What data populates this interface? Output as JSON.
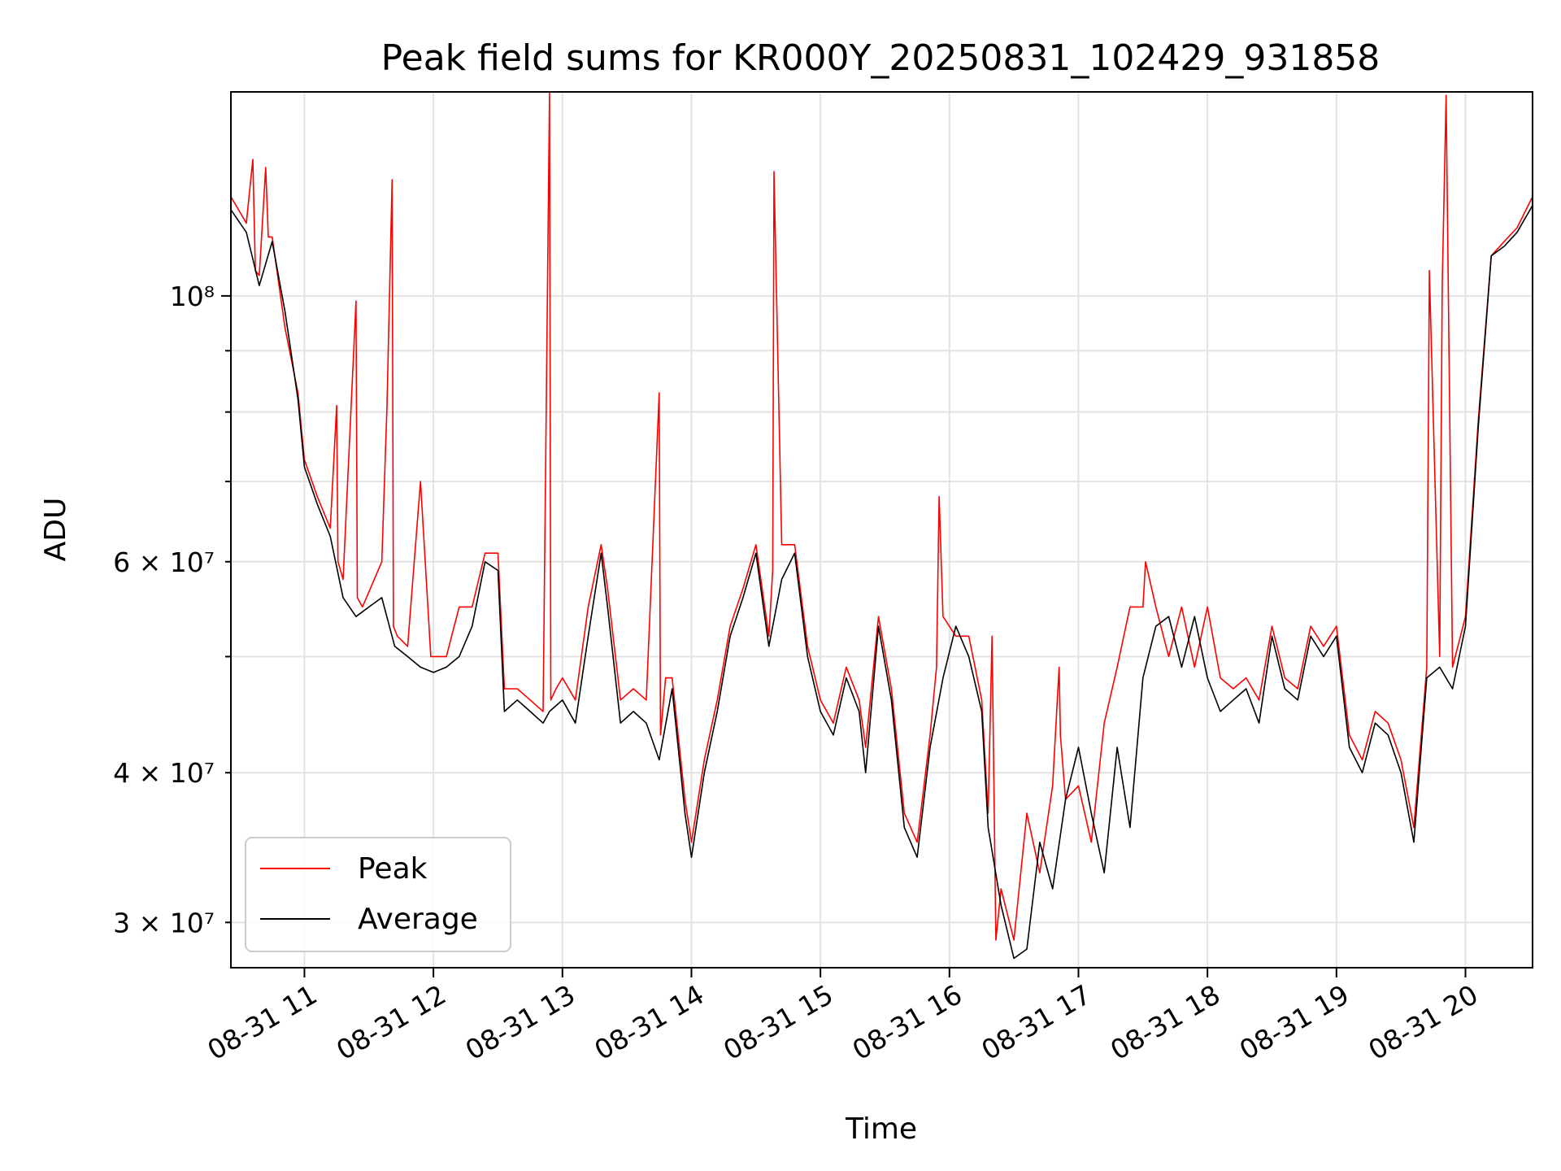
{
  "chart_data": {
    "type": "line",
    "title": "Peak field sums for KR000Y_20250831_102429_931858",
    "xlabel": "Time",
    "ylabel": "ADU",
    "x_tick_labels": [
      "08-31 11",
      "08-31 12",
      "08-31 13",
      "08-31 14",
      "08-31 15",
      "08-31 16",
      "08-31 17",
      "08-31 18",
      "08-31 19",
      "08-31 20"
    ],
    "x_ticks_hours": [
      11,
      12,
      13,
      14,
      15,
      16,
      17,
      18,
      19,
      20
    ],
    "xlim_hours": [
      10.43,
      20.52
    ],
    "y_scale": "log",
    "ylim": [
      27500000,
      148000000
    ],
    "y_major_ticks": [
      100000000
    ],
    "y_major_labels": [
      "10⁸"
    ],
    "y_minor_ticks": [
      30000000,
      40000000,
      50000000,
      60000000,
      70000000,
      80000000,
      90000000
    ],
    "y_minor_labels": [
      "3 × 10⁷",
      "4 × 10⁷",
      "",
      "6 × 10⁷",
      "",
      "",
      ""
    ],
    "grid": true,
    "legend_location": "lower-left",
    "series": [
      {
        "name": "Average",
        "color": "#000000",
        "x_hours": [
          10.43,
          10.55,
          10.65,
          10.75,
          10.85,
          10.95,
          11.0,
          11.1,
          11.2,
          11.3,
          11.4,
          11.5,
          11.6,
          11.7,
          11.8,
          11.9,
          12.0,
          12.1,
          12.2,
          12.3,
          12.4,
          12.5,
          12.55,
          12.65,
          12.75,
          12.85,
          12.9,
          13.0,
          13.1,
          13.2,
          13.3,
          13.35,
          13.45,
          13.55,
          13.65,
          13.75,
          13.85,
          13.95,
          14.0,
          14.1,
          14.2,
          14.3,
          14.4,
          14.5,
          14.6,
          14.7,
          14.8,
          14.9,
          15.0,
          15.1,
          15.2,
          15.3,
          15.35,
          15.45,
          15.55,
          15.65,
          15.75,
          15.85,
          15.95,
          16.05,
          16.15,
          16.25,
          16.3,
          16.4,
          16.5,
          16.6,
          16.7,
          16.8,
          16.9,
          17.0,
          17.1,
          17.2,
          17.3,
          17.4,
          17.5,
          17.6,
          17.7,
          17.8,
          17.9,
          18.0,
          18.1,
          18.2,
          18.3,
          18.4,
          18.5,
          18.6,
          18.7,
          18.8,
          18.9,
          19.0,
          19.1,
          19.2,
          19.3,
          19.4,
          19.5,
          19.6,
          19.7,
          19.8,
          19.9,
          20.0,
          20.1,
          20.2,
          20.3,
          20.4,
          20.52
        ],
        "values": [
          118000000,
          113000000,
          102000000,
          111000000,
          97000000,
          82000000,
          72000000,
          67000000,
          63000000,
          56000000,
          54000000,
          55000000,
          56000000,
          51000000,
          50000000,
          49000000,
          48500000,
          49000000,
          50000000,
          53000000,
          60000000,
          59000000,
          45000000,
          46000000,
          45000000,
          44000000,
          45000000,
          46000000,
          44000000,
          52000000,
          61000000,
          55000000,
          44000000,
          45000000,
          44000000,
          41000000,
          47000000,
          37000000,
          34000000,
          40000000,
          45000000,
          52000000,
          56000000,
          61000000,
          51000000,
          58000000,
          61000000,
          50000000,
          45000000,
          43000000,
          48000000,
          45000000,
          40000000,
          53000000,
          46000000,
          36000000,
          34000000,
          42000000,
          48000000,
          53000000,
          50000000,
          45000000,
          36000000,
          31000000,
          28000000,
          28500000,
          35000000,
          32000000,
          38000000,
          42000000,
          37000000,
          33000000,
          42000000,
          36000000,
          48000000,
          53000000,
          54000000,
          49000000,
          54000000,
          48000000,
          45000000,
          46000000,
          47000000,
          44000000,
          52000000,
          47000000,
          46000000,
          52000000,
          50000000,
          52000000,
          42000000,
          40000000,
          44000000,
          43000000,
          40000000,
          35000000,
          48000000,
          49000000,
          47000000,
          53000000,
          78000000,
          108000000,
          110000000,
          113000000,
          119000000
        ]
      },
      {
        "name": "Peak",
        "color": "#ff0000",
        "x_hours": [
          10.43,
          10.55,
          10.6,
          10.62,
          10.65,
          10.7,
          10.72,
          10.75,
          10.85,
          10.95,
          11.0,
          11.1,
          11.2,
          11.25,
          11.26,
          11.3,
          11.4,
          11.41,
          11.45,
          11.6,
          11.64,
          11.68,
          11.69,
          11.72,
          11.8,
          11.9,
          11.98,
          12.0,
          12.1,
          12.2,
          12.3,
          12.4,
          12.5,
          12.55,
          12.65,
          12.75,
          12.85,
          12.9,
          12.91,
          12.95,
          13.0,
          13.1,
          13.2,
          13.3,
          13.35,
          13.45,
          13.55,
          13.65,
          13.75,
          13.76,
          13.8,
          13.85,
          13.95,
          14.0,
          14.1,
          14.2,
          14.3,
          14.4,
          14.5,
          14.6,
          14.63,
          14.64,
          14.7,
          14.8,
          14.9,
          15.0,
          15.1,
          15.2,
          15.3,
          15.35,
          15.45,
          15.55,
          15.65,
          15.75,
          15.85,
          15.9,
          15.92,
          15.95,
          16.05,
          16.15,
          16.25,
          16.3,
          16.33,
          16.36,
          16.4,
          16.5,
          16.6,
          16.7,
          16.8,
          16.85,
          16.86,
          16.9,
          17.0,
          17.1,
          17.2,
          17.3,
          17.4,
          17.5,
          17.52,
          17.6,
          17.7,
          17.8,
          17.9,
          18.0,
          18.1,
          18.2,
          18.3,
          18.4,
          18.5,
          18.6,
          18.7,
          18.8,
          18.9,
          19.0,
          19.1,
          19.2,
          19.3,
          19.4,
          19.5,
          19.6,
          19.7,
          19.72,
          19.8,
          19.82,
          19.85,
          19.9,
          20.0,
          20.1,
          20.2,
          20.3,
          20.4,
          20.52
        ],
        "values": [
          121000000,
          115000000,
          130000000,
          105000000,
          104000000,
          128000000,
          112000000,
          112000000,
          94000000,
          83000000,
          73000000,
          68000000,
          64000000,
          81000000,
          60000000,
          58000000,
          99000000,
          56000000,
          55000000,
          60000000,
          81000000,
          125000000,
          53000000,
          52000000,
          51000000,
          70000000,
          50000000,
          50000000,
          50000000,
          55000000,
          55000000,
          61000000,
          61000000,
          47000000,
          47000000,
          46000000,
          45000000,
          148000000,
          46000000,
          47000000,
          48000000,
          46000000,
          55000000,
          62000000,
          57000000,
          46000000,
          47000000,
          46000000,
          83000000,
          43000000,
          48000000,
          48000000,
          38000000,
          35000000,
          41000000,
          46000000,
          53000000,
          57000000,
          62000000,
          52000000,
          59000000,
          127000000,
          62000000,
          62000000,
          51000000,
          46000000,
          44000000,
          49000000,
          46000000,
          42000000,
          54000000,
          47000000,
          37000000,
          35000000,
          43000000,
          49000000,
          68000000,
          54000000,
          52000000,
          52000000,
          46000000,
          37000000,
          52000000,
          29000000,
          32000000,
          29000000,
          37000000,
          33000000,
          39000000,
          49000000,
          43000000,
          38000000,
          39000000,
          35000000,
          44000000,
          49000000,
          55000000,
          55000000,
          60000000,
          55000000,
          50000000,
          55000000,
          49000000,
          55000000,
          48000000,
          47000000,
          48000000,
          46000000,
          53000000,
          48000000,
          47000000,
          53000000,
          51000000,
          53000000,
          43000000,
          41000000,
          45000000,
          44000000,
          41000000,
          36000000,
          49000000,
          105000000,
          50000000,
          102000000,
          147000000,
          49000000,
          54000000,
          79000000,
          108000000,
          111000000,
          114000000,
          121000000
        ]
      }
    ]
  }
}
